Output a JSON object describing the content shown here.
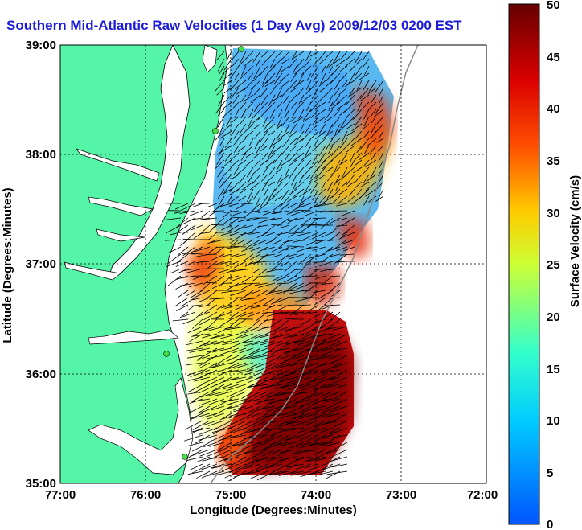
{
  "title": "Southern Mid-Atlantic Raw Velocities (1 Day Avg) 2009/12/03 0200 EST",
  "axes": {
    "xlabel": "Longitude (Degrees:Minutes)",
    "ylabel": "Latitude (Degrees:Minutes)",
    "xticks": [
      "77:00",
      "76:00",
      "75:00",
      "74:00",
      "73:00",
      "72:00"
    ],
    "yticks": [
      "39:00",
      "38:00",
      "37:00",
      "36:00",
      "35:00"
    ]
  },
  "colorbar": {
    "label": "Surface Velocity (cm/s)",
    "ticks": [
      "50",
      "45",
      "40",
      "35",
      "30",
      "25",
      "20",
      "15",
      "10",
      "5",
      "0"
    ],
    "min": 0,
    "max": 50
  },
  "colors": {
    "land": "#55f5a8",
    "water": "#ffffff",
    "title": "#1c1cd8",
    "station": "#44dd44"
  }
}
